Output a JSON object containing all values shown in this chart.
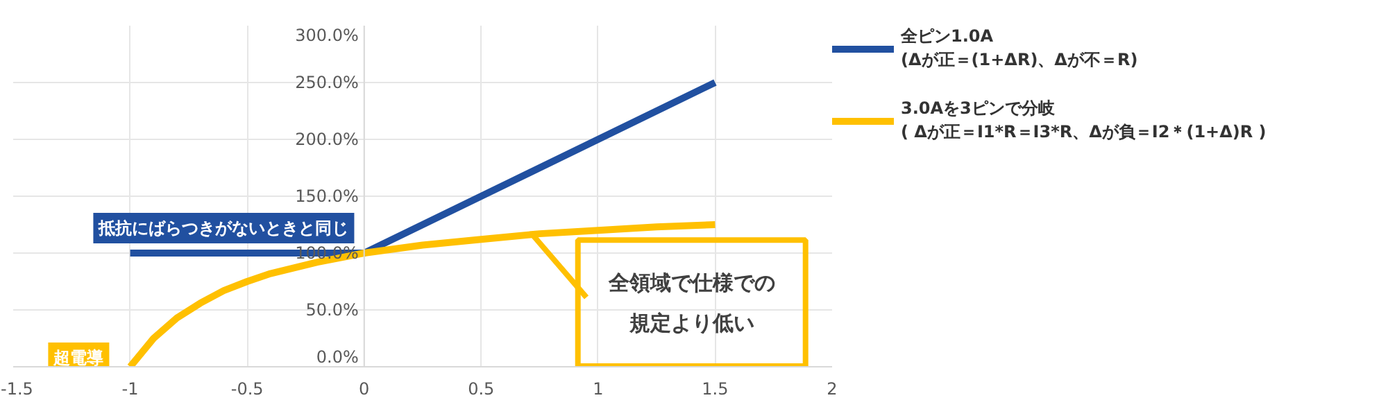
{
  "chart_data": {
    "type": "line",
    "x": [
      -1,
      0,
      1.5
    ],
    "series": [
      {
        "name": "全ピン1.0A\n(Δが正＝(1+ΔR)、Δが不＝R)",
        "color": "#2150a0",
        "values": [
          100,
          100,
          250
        ]
      },
      {
        "name": "3.0Aを3ピンで分岐\n( Δが正＝I1*R＝I3*R、Δが負＝I2＊(1+Δ)R )",
        "color": "#ffc000",
        "x": [
          -1,
          -0.9,
          -0.8,
          -0.7,
          -0.6,
          -0.5,
          -0.4,
          -0.3,
          -0.2,
          -0.1,
          0,
          0.25,
          0.5,
          0.75,
          1,
          1.25,
          1.5
        ],
        "values": [
          0,
          25,
          43,
          56,
          67,
          75,
          82,
          87,
          92,
          96,
          100,
          107,
          112,
          117,
          120,
          123,
          125
        ]
      }
    ],
    "xlim": [
      -1.5,
      2
    ],
    "xticks": [
      -1.5,
      -1,
      -0.5,
      0,
      0.5,
      1,
      1.5,
      2
    ],
    "ylim": [
      0,
      300
    ],
    "yticks": [
      {
        "value": 0,
        "label": "0.0%"
      },
      {
        "value": 50,
        "label": "50.0%"
      },
      {
        "value": 100,
        "label": "100.0%"
      },
      {
        "value": 150,
        "label": "150.0%"
      },
      {
        "value": 200,
        "label": "200.0%"
      },
      {
        "value": 250,
        "label": "250.0%"
      },
      {
        "value": 300,
        "label": "300.0%"
      }
    ],
    "grid": true,
    "legend": "right",
    "marker": "none",
    "line_style": "solid",
    "annotations": [
      {
        "text": "抵抗にばらつきがないときと同じ",
        "x": -0.6,
        "y": 100
      },
      {
        "text": "超電導",
        "x": -1,
        "y": 0
      },
      {
        "text": "全領域で仕様での規定より低い",
        "x": 0.72,
        "y": 116
      }
    ]
  }
}
